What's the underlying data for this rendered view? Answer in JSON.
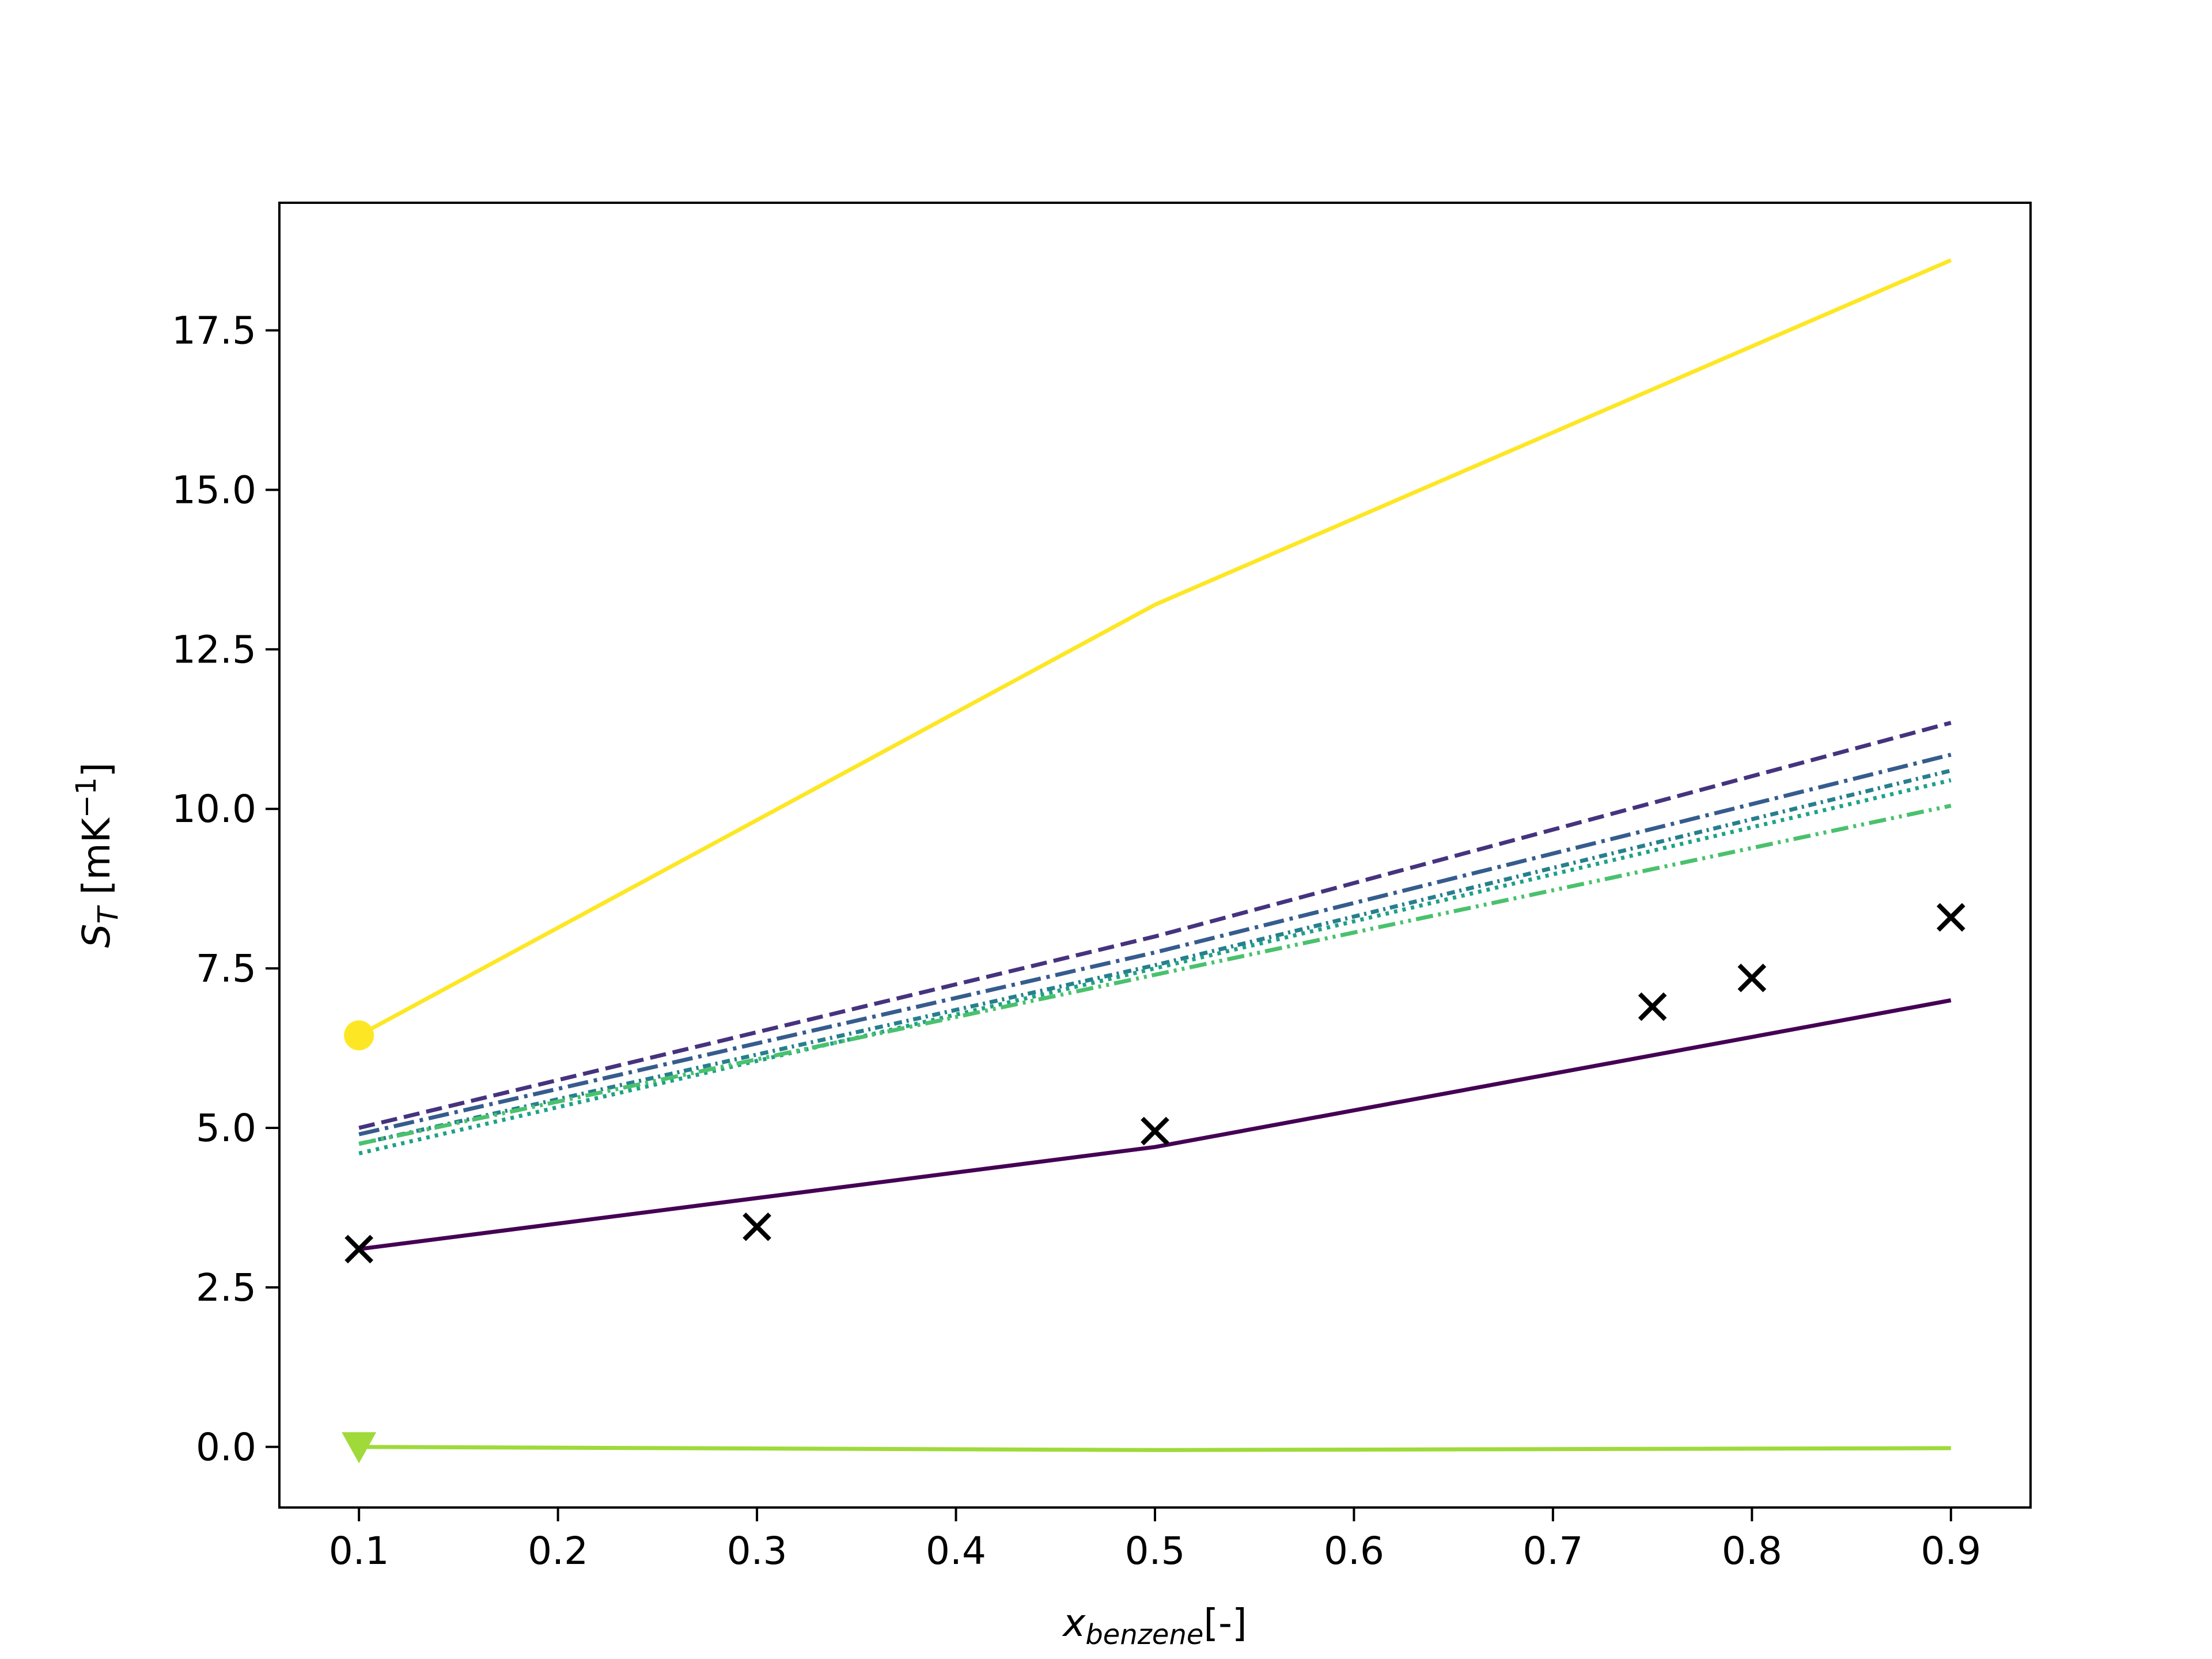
{
  "chart_data": {
    "type": "line",
    "xlabel": {
      "main": "x",
      "sub": "benzene",
      "suffix": "[-]"
    },
    "ylabel": {
      "main": "S",
      "sub": "T",
      "suffix": " [mK",
      "sup": "−1",
      "close": "]"
    },
    "xlim": [
      0.06,
      0.94
    ],
    "ylim": [
      -0.95,
      19.5
    ],
    "x_ticks": [
      0.1,
      0.2,
      0.3,
      0.4,
      0.5,
      0.6,
      0.7,
      0.8,
      0.9
    ],
    "x_tick_labels": [
      "0.1",
      "0.2",
      "0.3",
      "0.4",
      "0.5",
      "0.6",
      "0.7",
      "0.8",
      "0.9"
    ],
    "y_ticks": [
      0.0,
      2.5,
      5.0,
      7.5,
      10.0,
      12.5,
      15.0,
      17.5
    ],
    "y_tick_labels": [
      "0.0",
      "2.5",
      "5.0",
      "7.5",
      "10.0",
      "12.5",
      "15.0",
      "17.5"
    ],
    "grid": false,
    "series": [
      {
        "x": [
          0.1,
          0.5,
          0.9
        ],
        "y": [
          3.1,
          4.7,
          7.0
        ],
        "color": "#440154",
        "dash": "solid"
      },
      {
        "x": [
          0.1,
          0.5,
          0.9
        ],
        "y": [
          5.0,
          8.0,
          11.35
        ],
        "color": "#46337e",
        "dash": "dashed"
      },
      {
        "x": [
          0.1,
          0.5,
          0.9
        ],
        "y": [
          4.9,
          7.75,
          10.85
        ],
        "color": "#365c8d",
        "dash": "dashdot"
      },
      {
        "x": [
          0.1,
          0.5,
          0.9
        ],
        "y": [
          4.75,
          7.55,
          10.6
        ],
        "color": "#277f8e",
        "dash": "densedashdot"
      },
      {
        "x": [
          0.1,
          0.5,
          0.9
        ],
        "y": [
          4.6,
          7.5,
          10.45
        ],
        "color": "#1fa187",
        "dash": "dotted"
      },
      {
        "x": [
          0.1,
          0.5,
          0.9
        ],
        "y": [
          4.75,
          7.4,
          10.05
        ],
        "color": "#4ac16d",
        "dash": "dashdotdot"
      },
      {
        "x": [
          0.1,
          0.5,
          0.9
        ],
        "y": [
          0.0,
          -0.05,
          -0.02
        ],
        "color": "#9fda3a",
        "dash": "solid",
        "marker": "triangle-down",
        "marker_at": 0
      },
      {
        "x": [
          0.1,
          0.5,
          0.9
        ],
        "y": [
          6.45,
          13.2,
          18.6
        ],
        "color": "#fde725",
        "dash": "solid",
        "marker": "circle",
        "marker_at": 0
      }
    ],
    "scatter": {
      "marker": "x",
      "color": "#000000",
      "x": [
        0.1,
        0.3,
        0.5,
        0.75,
        0.8,
        0.9
      ],
      "y": [
        3.1,
        3.45,
        4.95,
        6.9,
        7.35,
        8.3
      ]
    }
  }
}
